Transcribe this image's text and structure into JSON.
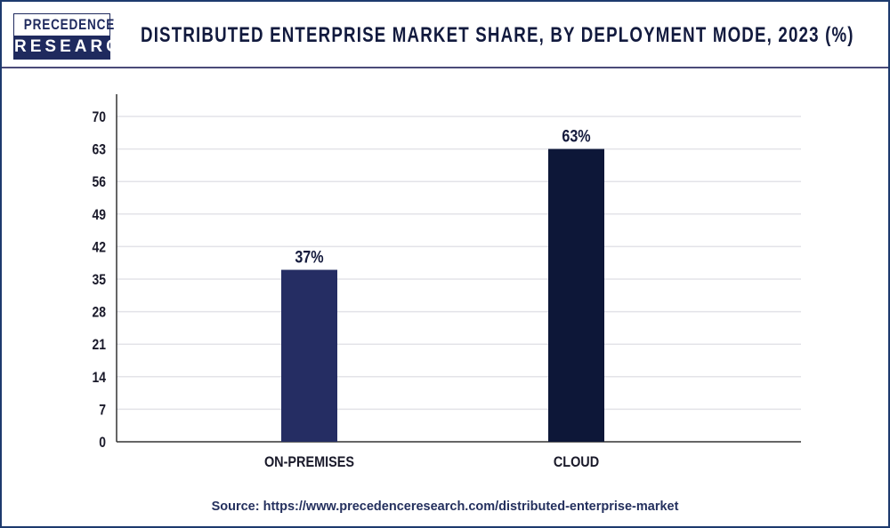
{
  "header": {
    "logo": {
      "line1": "PRECEDENCE",
      "line2": "RESEARCH"
    },
    "title": "DISTRIBUTED ENTERPRISE MARKET SHARE, BY DEPLOYMENT MODE, 2023 (%)"
  },
  "chart_data": {
    "type": "bar",
    "title": "DISTRIBUTED ENTERPRISE MARKET SHARE, BY DEPLOYMENT MODE, 2023 (%)",
    "categories": [
      "ON-PREMISES",
      "CLOUD"
    ],
    "values": [
      37,
      63
    ],
    "data_labels": [
      "37%",
      "63%"
    ],
    "colors": [
      "#252d63",
      "#0d1738"
    ],
    "xlabel": "",
    "ylabel": "",
    "ylim": [
      0,
      70
    ],
    "yticks": [
      "0",
      "7",
      "14",
      "21",
      "28",
      "35",
      "42",
      "49",
      "56",
      "63",
      "70"
    ],
    "grid": true,
    "legend": "none"
  },
  "footer": {
    "source": "Source: https://www.precedenceresearch.com/distributed-enterprise-market"
  }
}
